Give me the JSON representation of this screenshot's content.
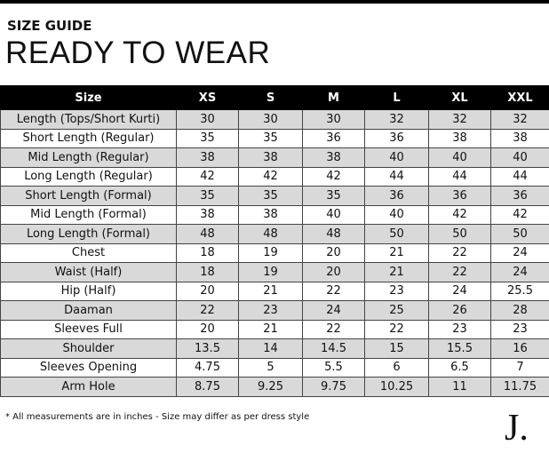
{
  "header": {
    "kicker": "SIZE GUIDE",
    "title": "READY TO WEAR"
  },
  "table": {
    "columns": [
      "Size",
      "XS",
      "S",
      "M",
      "L",
      "XL",
      "XXL"
    ],
    "rows": [
      [
        "Length (Tops/Short Kurti)",
        "30",
        "30",
        "30",
        "32",
        "32",
        "32"
      ],
      [
        "Short Length (Regular)",
        "35",
        "35",
        "36",
        "36",
        "38",
        "38"
      ],
      [
        "Mid Length (Regular)",
        "38",
        "38",
        "38",
        "40",
        "40",
        "40"
      ],
      [
        "Long Length (Regular)",
        "42",
        "42",
        "42",
        "44",
        "44",
        "44"
      ],
      [
        "Short Length (Formal)",
        "35",
        "35",
        "35",
        "36",
        "36",
        "36"
      ],
      [
        "Mid Length (Formal)",
        "38",
        "38",
        "40",
        "40",
        "42",
        "42"
      ],
      [
        "Long Length (Formal)",
        "48",
        "48",
        "48",
        "50",
        "50",
        "50"
      ],
      [
        "Chest",
        "18",
        "19",
        "20",
        "21",
        "22",
        "24"
      ],
      [
        "Waist (Half)",
        "18",
        "19",
        "20",
        "21",
        "22",
        "24"
      ],
      [
        "Hip (Half)",
        "20",
        "21",
        "22",
        "23",
        "24",
        "25.5"
      ],
      [
        "Daaman",
        "22",
        "23",
        "24",
        "25",
        "26",
        "28"
      ],
      [
        "Sleeves Full",
        "20",
        "21",
        "22",
        "22",
        "23",
        "23"
      ],
      [
        "Shoulder",
        "13.5",
        "14",
        "14.5",
        "15",
        "15.5",
        "16"
      ],
      [
        "Sleeves Opening",
        "4.75",
        "5",
        "5.5",
        "6",
        "6.5",
        "7"
      ],
      [
        "Arm Hole",
        "8.75",
        "9.25",
        "9.75",
        "10.25",
        "11",
        "11.75"
      ]
    ]
  },
  "footer": {
    "note": "* All measurements are in inches - Size may differ as per dress style",
    "logo": "J."
  }
}
